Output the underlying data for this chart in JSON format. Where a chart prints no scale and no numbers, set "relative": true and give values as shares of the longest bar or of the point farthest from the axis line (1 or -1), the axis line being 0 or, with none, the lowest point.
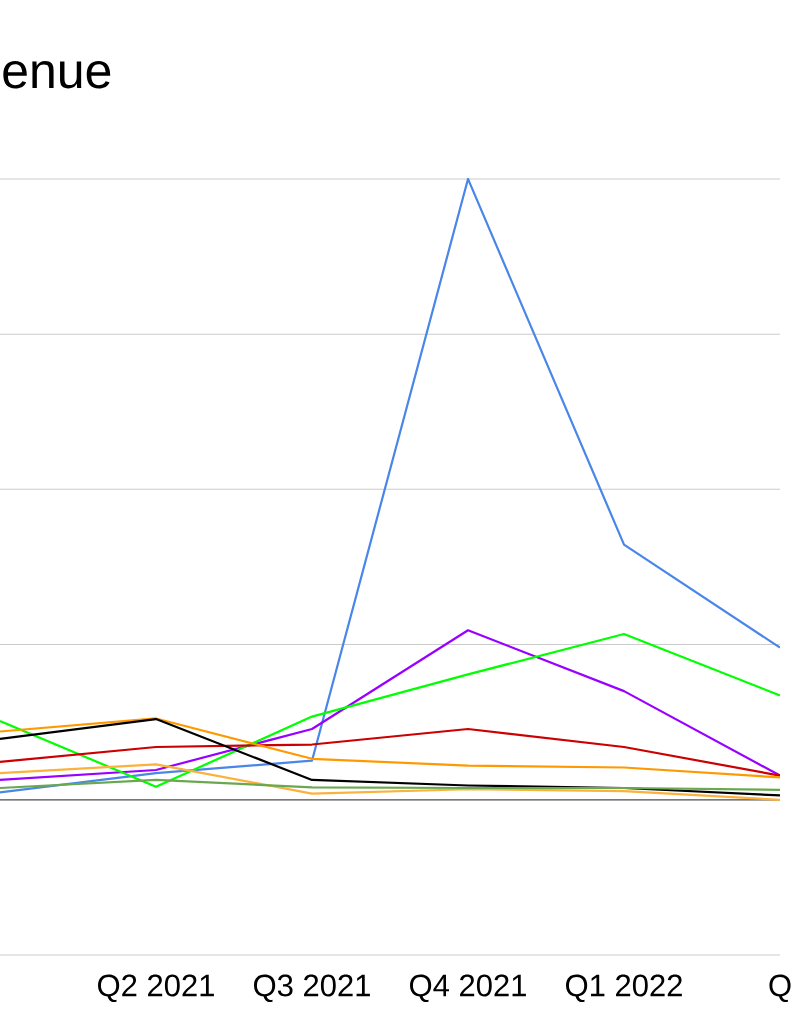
{
  "chart_data": {
    "type": "line",
    "title": "enue",
    "categories": [
      null,
      "Q2 2021",
      "Q3 2021",
      "Q4 2021",
      "Q1 2022",
      "Q"
    ],
    "relative": true,
    "grid": "y",
    "series": [
      {
        "color": "#4a86e8",
        "values": [
          0.012,
          0.043,
          0.063,
          1,
          0.411,
          0.245
        ]
      },
      {
        "color": "#9900ff",
        "values": [
          0.032,
          0.048,
          0.114,
          0.273,
          0.175,
          0.039
        ]
      },
      {
        "color": "#00ff00",
        "values": [
          0.127,
          0.021,
          0.134,
          0.202,
          0.267,
          0.168
        ]
      },
      {
        "color": "#cc0000",
        "values": [
          0.061,
          0.085,
          0.089,
          0.114,
          0.085,
          0.039
        ]
      },
      {
        "color": "#ff9900",
        "values": [
          0.11,
          0.131,
          0.066,
          0.055,
          0.052,
          0.036
        ]
      },
      {
        "color": "#000000",
        "values": [
          0.098,
          0.13,
          0.032,
          0.023,
          0.019,
          0.007
        ]
      },
      {
        "color": "#fbb13c",
        "values": [
          0.043,
          0.057,
          0.01,
          0.017,
          0.014,
          0
        ]
      },
      {
        "color": "#6aa84f",
        "values": [
          0.019,
          0.032,
          0.02,
          0.019,
          0.019,
          0.016
        ]
      }
    ]
  }
}
